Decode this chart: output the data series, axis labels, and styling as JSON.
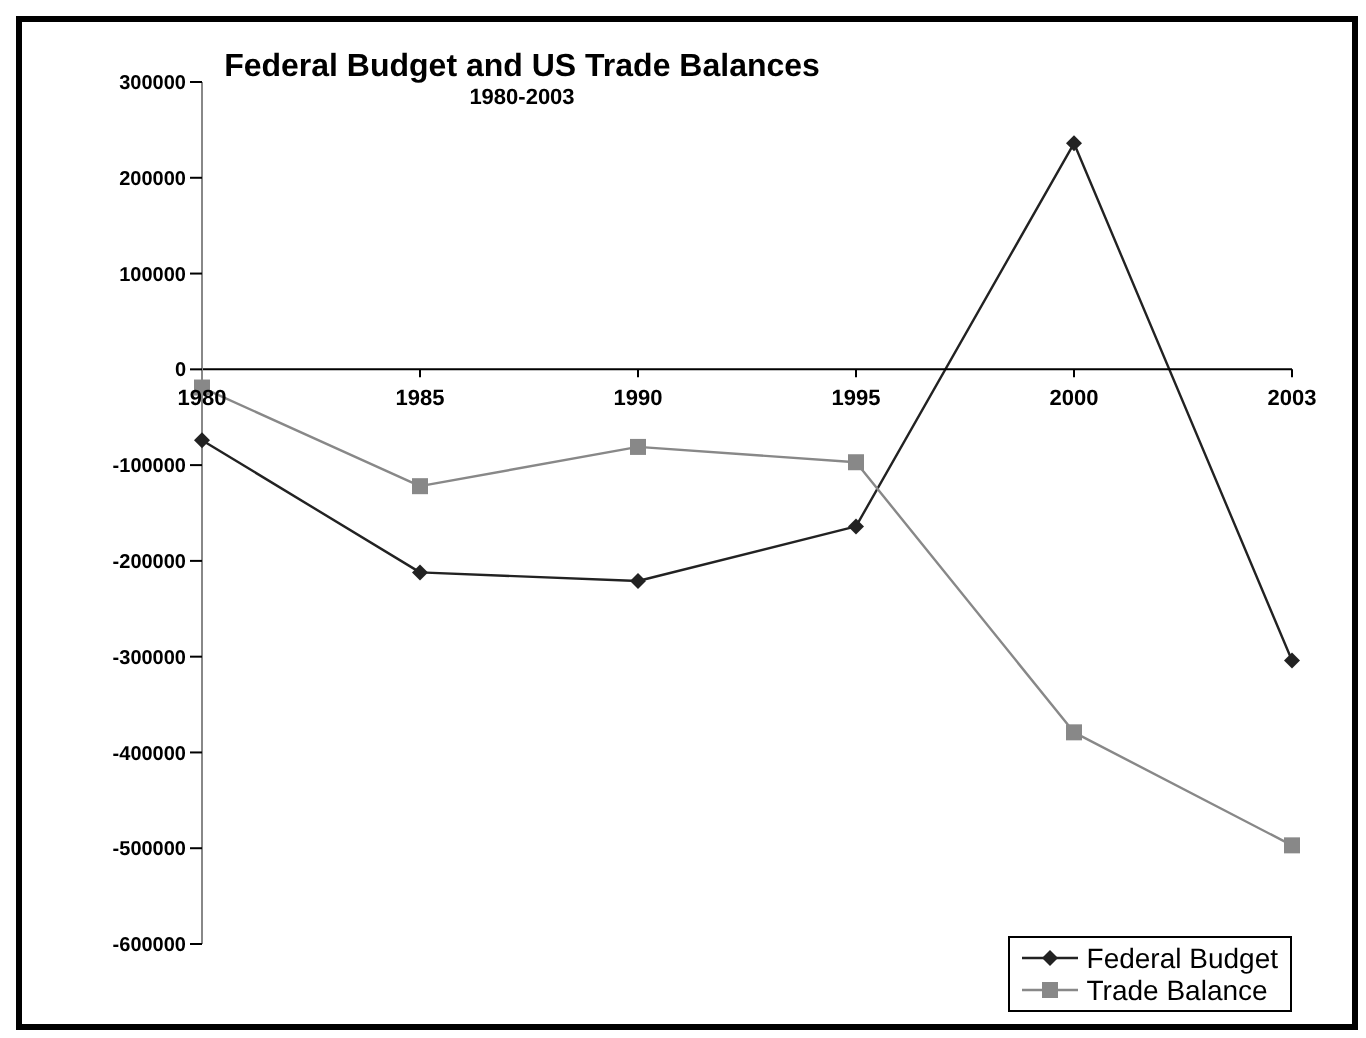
{
  "chart_data": {
    "type": "line",
    "title": "Federal Budget and US Trade Balances",
    "subtitle": "1980-2003",
    "categories": [
      "1980",
      "1985",
      "1990",
      "1995",
      "2000",
      "2003"
    ],
    "series": [
      {
        "name": "Federal Budget",
        "color": "#222222",
        "marker": "diamond",
        "values": [
          -74000,
          -212000,
          -221000,
          -164000,
          236000,
          -304000
        ]
      },
      {
        "name": "Trade Balance",
        "color": "#888888",
        "marker": "square",
        "values": [
          -19000,
          -122000,
          -81000,
          -97000,
          -379000,
          -497000
        ]
      }
    ],
    "ylim": [
      -600000,
      300000
    ],
    "yticks": [
      -600000,
      -500000,
      -400000,
      -300000,
      -200000,
      -100000,
      0,
      100000,
      200000,
      300000
    ],
    "grid": false,
    "legend": "bottom right"
  }
}
